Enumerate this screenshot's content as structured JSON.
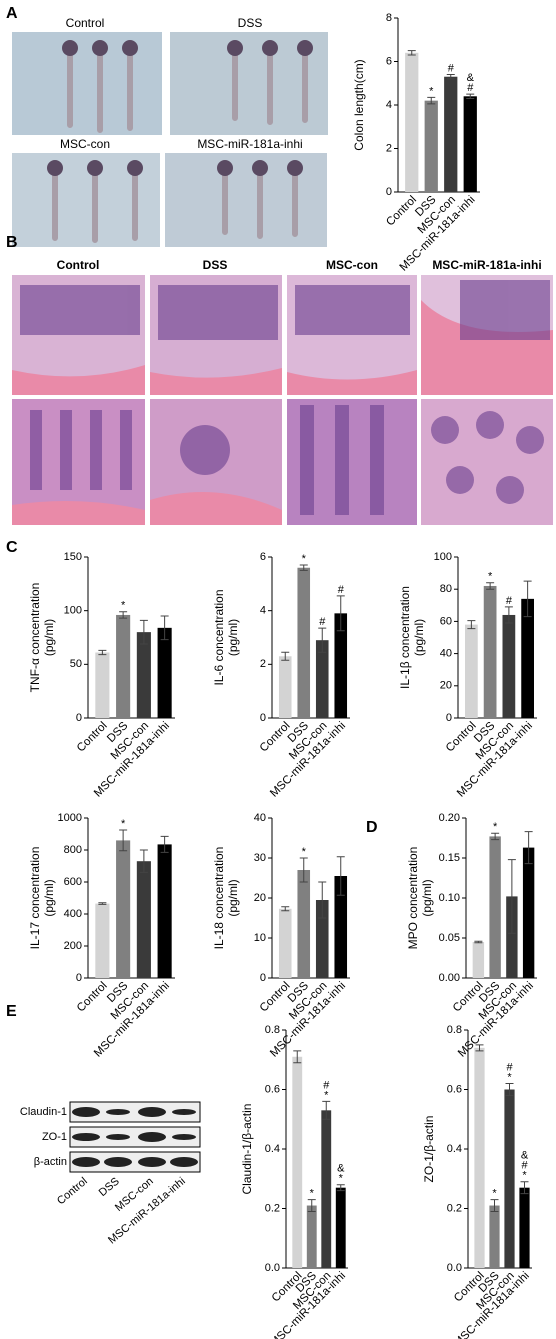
{
  "figure": {
    "panels": [
      "A",
      "B",
      "C",
      "D",
      "E"
    ],
    "photo_labels_a": [
      "Control",
      "DSS",
      "MSC-con",
      "MSC-miR-181a-inhi"
    ],
    "photo_labels_b": [
      "Control",
      "DSS",
      "MSC-con",
      "MSC-miR-181a-inhi"
    ],
    "blot": {
      "rows": [
        "Claudin-1",
        "ZO-1",
        "β-actin"
      ],
      "categories": [
        "Control",
        "DSS",
        "MSC-con",
        "MSC-miR-181a-inhi"
      ]
    }
  },
  "chart_data": [
    {
      "type": "bar",
      "ylabel": [
        "Colon length(cm)"
      ],
      "categories": [
        "Control",
        "DSS",
        "MSC-con",
        "MSC-miR-181a-inhi"
      ],
      "values": [
        6.4,
        4.2,
        5.3,
        4.4
      ],
      "errors": [
        0.1,
        0.15,
        0.1,
        0.1
      ],
      "colors": [
        "#d3d3d3",
        "#808080",
        "#3a3a3a",
        "#000000"
      ],
      "annotations": [
        [],
        [
          "*"
        ],
        [
          "#"
        ],
        [
          "&",
          "#"
        ]
      ],
      "ylim": [
        0,
        8
      ],
      "yticks": [
        0,
        2,
        4,
        6,
        8
      ]
    },
    {
      "type": "bar",
      "ylabel": [
        "TNF-α concentration",
        "(pg/ml)"
      ],
      "categories": [
        "Control",
        "DSS",
        "MSC-con",
        "MSC-miR-181a-inhi"
      ],
      "values": [
        61,
        96,
        80,
        84
      ],
      "errors": [
        2,
        3,
        11,
        11
      ],
      "colors": [
        "#d3d3d3",
        "#808080",
        "#3a3a3a",
        "#000000"
      ],
      "annotations": [
        [],
        [
          "*"
        ],
        [],
        []
      ],
      "ylim": [
        0,
        150
      ],
      "yticks": [
        0,
        50,
        100,
        150
      ]
    },
    {
      "type": "bar",
      "ylabel": [
        "IL-6 concentration",
        "(pg/ml)"
      ],
      "categories": [
        "Control",
        "DSS",
        "MSC-con",
        "MSC-miR-181a-inhi"
      ],
      "values": [
        2.3,
        5.6,
        2.9,
        3.9
      ],
      "errors": [
        0.15,
        0.1,
        0.45,
        0.65
      ],
      "colors": [
        "#d3d3d3",
        "#808080",
        "#3a3a3a",
        "#000000"
      ],
      "annotations": [
        [],
        [
          "*"
        ],
        [
          "#"
        ],
        [
          "#"
        ]
      ],
      "ylim": [
        0,
        6
      ],
      "yticks": [
        0,
        2,
        4,
        6
      ]
    },
    {
      "type": "bar",
      "ylabel": [
        "IL-1β concentration",
        "(pg/ml)"
      ],
      "categories": [
        "Control",
        "DSS",
        "MSC-con",
        "MSC-miR-181a-inhi"
      ],
      "values": [
        58,
        82,
        64,
        74
      ],
      "errors": [
        2.5,
        2,
        5,
        11
      ],
      "colors": [
        "#d3d3d3",
        "#808080",
        "#3a3a3a",
        "#000000"
      ],
      "annotations": [
        [],
        [
          "*"
        ],
        [
          "#"
        ],
        []
      ],
      "ylim": [
        0,
        100
      ],
      "yticks": [
        0,
        20,
        40,
        60,
        80,
        100
      ]
    },
    {
      "type": "bar",
      "ylabel": [
        "IL-17 concentration",
        "(pg/ml)"
      ],
      "categories": [
        "Control",
        "DSS",
        "MSC-con",
        "MSC-miR-181a-inhi"
      ],
      "values": [
        465,
        860,
        730,
        835
      ],
      "errors": [
        5,
        65,
        70,
        50
      ],
      "colors": [
        "#d3d3d3",
        "#808080",
        "#3a3a3a",
        "#000000"
      ],
      "annotations": [
        [],
        [
          "*"
        ],
        [],
        []
      ],
      "ylim": [
        0,
        1000
      ],
      "yticks": [
        0,
        200,
        400,
        600,
        800,
        1000
      ]
    },
    {
      "type": "bar",
      "ylabel": [
        "IL-18 concentration",
        "(pg/ml)"
      ],
      "categories": [
        "Control",
        "DSS",
        "MSC-con",
        "MSC-miR-181a-inhi"
      ],
      "values": [
        17.3,
        27,
        19.5,
        25.5
      ],
      "errors": [
        0.5,
        3,
        4.5,
        4.8
      ],
      "colors": [
        "#d3d3d3",
        "#808080",
        "#3a3a3a",
        "#000000"
      ],
      "annotations": [
        [],
        [
          "*"
        ],
        [],
        []
      ],
      "ylim": [
        0,
        40
      ],
      "yticks": [
        0,
        10,
        20,
        30,
        40
      ]
    },
    {
      "type": "bar",
      "ylabel": [
        "MPO concentration",
        "(pg/ml)"
      ],
      "categories": [
        "Control",
        "DSS",
        "MSC-con",
        "MSC-miR-181a-inhi"
      ],
      "values": [
        0.045,
        0.177,
        0.102,
        0.163
      ],
      "errors": [
        0.001,
        0.004,
        0.046,
        0.02
      ],
      "colors": [
        "#d3d3d3",
        "#808080",
        "#3a3a3a",
        "#000000"
      ],
      "annotations": [
        [],
        [
          "*"
        ],
        [],
        []
      ],
      "ylim": [
        0,
        0.2
      ],
      "yticks": [
        {
          "value": 0,
          "label": "0.00"
        },
        {
          "value": 0.05,
          "label": "0.05"
        },
        {
          "value": 0.1,
          "label": "0.10"
        },
        {
          "value": 0.15,
          "label": "0.15"
        },
        {
          "value": 0.2,
          "label": "0.20"
        }
      ]
    },
    {
      "type": "bar",
      "ylabel": [
        "Claudin-1/β-actin"
      ],
      "categories": [
        "Control",
        "DSS",
        "MSC-con",
        "MSC-miR-181a-inhi"
      ],
      "values": [
        0.71,
        0.21,
        0.53,
        0.27
      ],
      "errors": [
        0.02,
        0.02,
        0.03,
        0.01
      ],
      "colors": [
        "#d3d3d3",
        "#808080",
        "#3a3a3a",
        "#000000"
      ],
      "annotations": [
        [],
        [
          "*"
        ],
        [
          "#",
          "*"
        ],
        [
          "&",
          "*"
        ]
      ],
      "ylim": [
        0,
        0.8
      ],
      "yticks": [
        {
          "value": 0,
          "label": "0.0"
        },
        {
          "value": 0.2,
          "label": "0.2"
        },
        {
          "value": 0.4,
          "label": "0.4"
        },
        {
          "value": 0.6,
          "label": "0.6"
        },
        {
          "value": 0.8,
          "label": "0.8"
        }
      ]
    },
    {
      "type": "bar",
      "ylabel": [
        "ZO-1/β-actin"
      ],
      "categories": [
        "Control",
        "DSS",
        "MSC-con",
        "MSC-miR-181a-inhi"
      ],
      "values": [
        0.74,
        0.21,
        0.6,
        0.27
      ],
      "errors": [
        0.01,
        0.02,
        0.02,
        0.02
      ],
      "colors": [
        "#d3d3d3",
        "#808080",
        "#3a3a3a",
        "#000000"
      ],
      "annotations": [
        [],
        [
          "*"
        ],
        [
          "#",
          "*"
        ],
        [
          "&",
          "#",
          "*"
        ]
      ],
      "ylim": [
        0,
        0.8
      ],
      "yticks": [
        {
          "value": 0,
          "label": "0.0"
        },
        {
          "value": 0.2,
          "label": "0.2"
        },
        {
          "value": 0.4,
          "label": "0.4"
        },
        {
          "value": 0.6,
          "label": "0.6"
        },
        {
          "value": 0.8,
          "label": "0.8"
        }
      ]
    }
  ]
}
